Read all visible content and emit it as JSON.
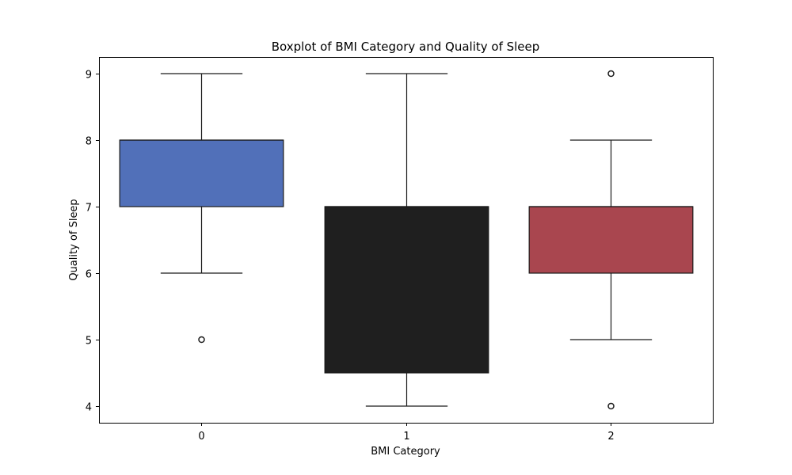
{
  "chart_data": {
    "type": "boxplot",
    "title": "Boxplot of BMI Category and Quality of Sleep",
    "xlabel": "BMI Category",
    "ylabel": "Quality of Sleep",
    "ylim": [
      3.75,
      9.25
    ],
    "yticks": [
      4,
      5,
      6,
      7,
      8,
      9
    ],
    "ytick_labels": [
      "4",
      "5",
      "6",
      "7",
      "8",
      "9"
    ],
    "categories": [
      "0",
      "1",
      "2"
    ],
    "boxes": [
      {
        "category": "0",
        "whisker_low": 6,
        "q1": 7,
        "median": 8,
        "q3": 8,
        "whisker_high": 9,
        "outliers": [
          5
        ],
        "color": "#5170b9"
      },
      {
        "category": "1",
        "whisker_low": 4,
        "q1": 4.5,
        "median": 7,
        "q3": 7,
        "whisker_high": 9,
        "outliers": [],
        "color": "#1f1f1f"
      },
      {
        "category": "2",
        "whisker_low": 5,
        "q1": 6,
        "median": 7,
        "q3": 7,
        "whisker_high": 8,
        "outliers": [
          9,
          4
        ],
        "color": "#a9464f"
      }
    ],
    "grid": false
  }
}
